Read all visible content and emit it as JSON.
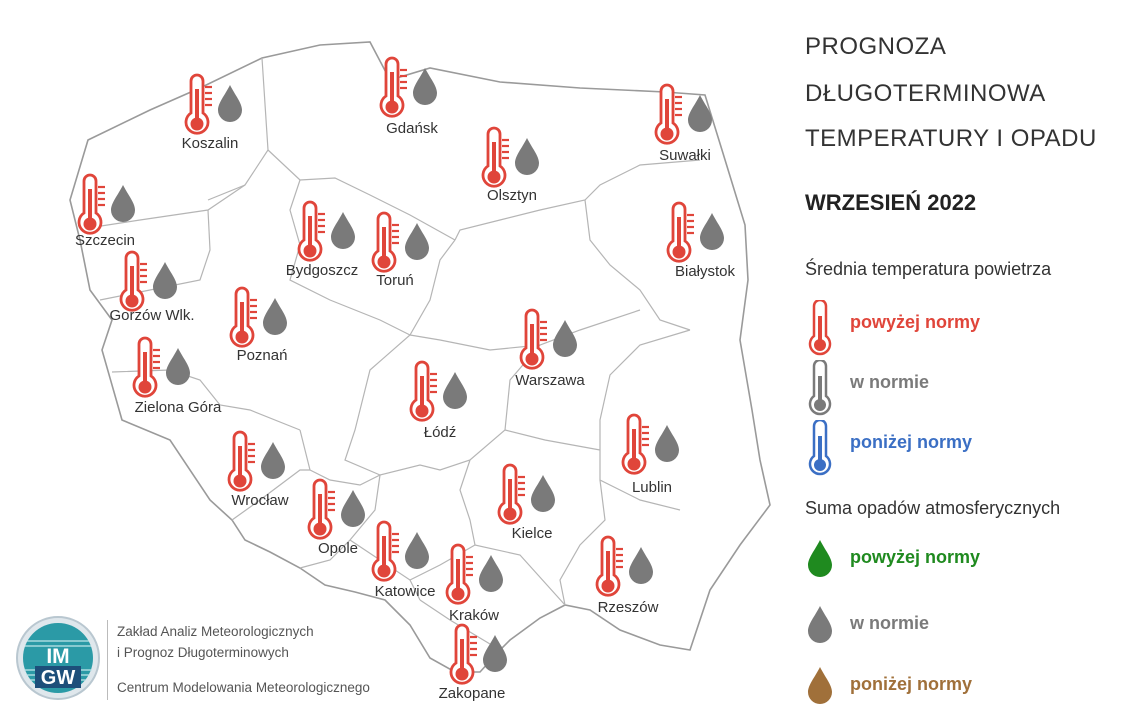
{
  "title_lines": [
    "PROGNOZA",
    "DŁUGOTERMINOWA",
    "TEMPERATURY I OPADU"
  ],
  "subtitle": "WRZESIEŃ 2022",
  "temperature_legend": {
    "heading": "Średnia temperatura powietrza",
    "items": [
      {
        "label": "powyżej normy",
        "color": "#e0453a"
      },
      {
        "label": "w normie",
        "color": "#7a7a7a"
      },
      {
        "label": "poniżej normy",
        "color": "#3b6fc4"
      }
    ]
  },
  "precip_legend": {
    "heading": "Suma opadów atmosferycznych",
    "items": [
      {
        "label": "powyżej normy",
        "color": "#1f8a1f"
      },
      {
        "label": "w normie",
        "color": "#7a7a7a"
      },
      {
        "label": "poniżej normy",
        "color": "#a0703a"
      }
    ]
  },
  "cities": [
    {
      "name": "Koszalin",
      "temperature": "powyżej normy",
      "precipitation": "w normie"
    },
    {
      "name": "Gdańsk",
      "temperature": "powyżej normy",
      "precipitation": "w normie"
    },
    {
      "name": "Suwałki",
      "temperature": "powyżej normy",
      "precipitation": "w normie"
    },
    {
      "name": "Olsztyn",
      "temperature": "powyżej normy",
      "precipitation": "w normie"
    },
    {
      "name": "Szczecin",
      "temperature": "powyżej normy",
      "precipitation": "w normie"
    },
    {
      "name": "Bydgoszcz",
      "temperature": "powyżej normy",
      "precipitation": "w normie"
    },
    {
      "name": "Toruń",
      "temperature": "powyżej normy",
      "precipitation": "w normie"
    },
    {
      "name": "Białystok",
      "temperature": "powyżej normy",
      "precipitation": "w normie"
    },
    {
      "name": "Gorzów Wlk.",
      "temperature": "powyżej normy",
      "precipitation": "w normie"
    },
    {
      "name": "Poznań",
      "temperature": "powyżej normy",
      "precipitation": "w normie"
    },
    {
      "name": "Warszawa",
      "temperature": "powyżej normy",
      "precipitation": "w normie"
    },
    {
      "name": "Zielona Góra",
      "temperature": "powyżej normy",
      "precipitation": "w normie"
    },
    {
      "name": "Łódź",
      "temperature": "powyżej normy",
      "precipitation": "w normie"
    },
    {
      "name": "Lublin",
      "temperature": "powyżej normy",
      "precipitation": "w normie"
    },
    {
      "name": "Wrocław",
      "temperature": "powyżej normy",
      "precipitation": "w normie"
    },
    {
      "name": "Kielce",
      "temperature": "powyżej normy",
      "precipitation": "w normie"
    },
    {
      "name": "Opole",
      "temperature": "powyżej normy",
      "precipitation": "w normie"
    },
    {
      "name": "Katowice",
      "temperature": "powyżej normy",
      "precipitation": "w normie"
    },
    {
      "name": "Kraków",
      "temperature": "powyżej normy",
      "precipitation": "w normie"
    },
    {
      "name": "Rzeszów",
      "temperature": "powyżej normy",
      "precipitation": "w normie"
    },
    {
      "name": "Zakopane",
      "temperature": "powyżej normy",
      "precipitation": "w normie"
    }
  ],
  "footer": {
    "line1": "Zakład Analiz Meteorologicznych",
    "line2": "i Prognoz Długoterminowych",
    "line3": "Centrum Modelowania Meteorologicznego",
    "logo_top": "IM",
    "logo_bottom": "GW"
  },
  "colors": {
    "border": "#9a9a9a",
    "region_line": "#b5b5b5"
  }
}
